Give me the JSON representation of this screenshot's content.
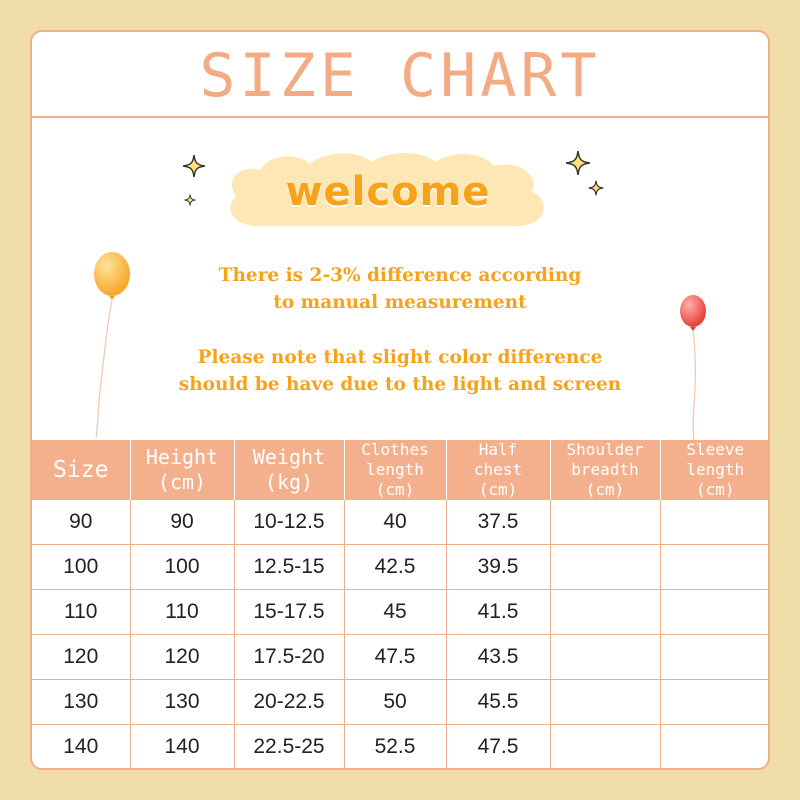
{
  "title": "SIZE CHART",
  "welcome": "welcome",
  "notes": {
    "line1": "There is 2-3% difference according",
    "line2": "to manual measurement",
    "line3": "Please note that slight color difference",
    "line4": "should be have due to the light and screen"
  },
  "decorations": [
    "sparkle-icon",
    "balloon-orange-icon",
    "balloon-red-icon",
    "cloud-icon"
  ],
  "colors": {
    "background": "#f1dda8",
    "accent": "#f2ab82",
    "header_fill": "#f4b08d",
    "note_text": "#f6a21b",
    "cloud": "#fde7b5"
  },
  "table": {
    "headers": [
      {
        "line1": "Size",
        "line2": ""
      },
      {
        "line1": "Height",
        "line2": "(cm)"
      },
      {
        "line1": "Weight",
        "line2": "(kg)"
      },
      {
        "line1": "Clothes",
        "line2": "length",
        "line3": "(cm)"
      },
      {
        "line1": "Half",
        "line2": "chest",
        "line3": "(cm)"
      },
      {
        "line1": "Shoulder",
        "line2": "breadth",
        "line3": "(cm)"
      },
      {
        "line1": "Sleeve",
        "line2": "length",
        "line3": "(cm)"
      }
    ],
    "rows": [
      [
        "90",
        "90",
        "10-12.5",
        "40",
        "37.5",
        "",
        ""
      ],
      [
        "100",
        "100",
        "12.5-15",
        "42.5",
        "39.5",
        "",
        ""
      ],
      [
        "110",
        "110",
        "15-17.5",
        "45",
        "41.5",
        "",
        ""
      ],
      [
        "120",
        "120",
        "17.5-20",
        "47.5",
        "43.5",
        "",
        ""
      ],
      [
        "130",
        "130",
        "20-22.5",
        "50",
        "45.5",
        "",
        ""
      ],
      [
        "140",
        "140",
        "22.5-25",
        "52.5",
        "47.5",
        "",
        ""
      ]
    ]
  }
}
